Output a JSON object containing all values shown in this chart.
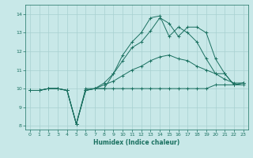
{
  "xlabel": "Humidex (Indice chaleur)",
  "bg_color": "#c8e8e8",
  "grid_color": "#a8d0d0",
  "line_color": "#1a7060",
  "xlim": [
    -0.5,
    23.5
  ],
  "ylim": [
    7.8,
    14.5
  ],
  "xticks": [
    0,
    1,
    2,
    3,
    4,
    5,
    6,
    7,
    8,
    9,
    10,
    11,
    12,
    13,
    14,
    15,
    16,
    17,
    18,
    19,
    20,
    21,
    22,
    23
  ],
  "yticks": [
    8,
    9,
    10,
    11,
    12,
    13,
    14
  ],
  "lines": [
    {
      "x": [
        0,
        1,
        2,
        3,
        4,
        5,
        6,
        7,
        8,
        9,
        10,
        11,
        12,
        13,
        14,
        15,
        16,
        17,
        18,
        19,
        20,
        21,
        22,
        23
      ],
      "y": [
        9.9,
        9.9,
        10.0,
        10.0,
        9.9,
        8.1,
        9.9,
        10.0,
        10.0,
        10.0,
        10.0,
        10.0,
        10.0,
        10.0,
        10.0,
        10.0,
        10.0,
        10.0,
        10.0,
        10.0,
        10.2,
        10.2,
        10.2,
        10.2
      ]
    },
    {
      "x": [
        0,
        1,
        2,
        3,
        4,
        5,
        6,
        7,
        8,
        9,
        10,
        11,
        12,
        13,
        14,
        15,
        16,
        17,
        18,
        19,
        20,
        21,
        22,
        23
      ],
      "y": [
        9.9,
        9.9,
        10.0,
        10.0,
        9.9,
        8.1,
        10.0,
        10.0,
        10.2,
        10.4,
        10.7,
        11.0,
        11.2,
        11.5,
        11.7,
        11.8,
        11.6,
        11.5,
        11.2,
        11.0,
        10.8,
        10.5,
        10.3,
        10.3
      ]
    },
    {
      "x": [
        0,
        1,
        2,
        3,
        4,
        5,
        6,
        7,
        8,
        9,
        10,
        11,
        12,
        13,
        14,
        15,
        16,
        17,
        18,
        19,
        20,
        21,
        22,
        23
      ],
      "y": [
        9.9,
        9.9,
        10.0,
        10.0,
        9.9,
        8.1,
        9.9,
        10.0,
        10.3,
        10.8,
        11.5,
        12.2,
        12.5,
        13.1,
        13.8,
        13.5,
        12.8,
        13.3,
        13.3,
        13.0,
        11.6,
        10.8,
        10.2,
        10.3
      ]
    },
    {
      "x": [
        0,
        1,
        2,
        3,
        4,
        5,
        6,
        7,
        8,
        9,
        10,
        11,
        12,
        13,
        14,
        15,
        16,
        17,
        18,
        19,
        20,
        21,
        22,
        23
      ],
      "y": [
        9.9,
        9.9,
        10.0,
        10.0,
        9.9,
        8.1,
        9.9,
        10.0,
        10.0,
        10.8,
        11.8,
        12.5,
        13.0,
        13.8,
        13.9,
        12.8,
        13.3,
        13.0,
        12.5,
        11.6,
        10.8,
        10.8,
        10.2,
        10.3
      ]
    }
  ]
}
